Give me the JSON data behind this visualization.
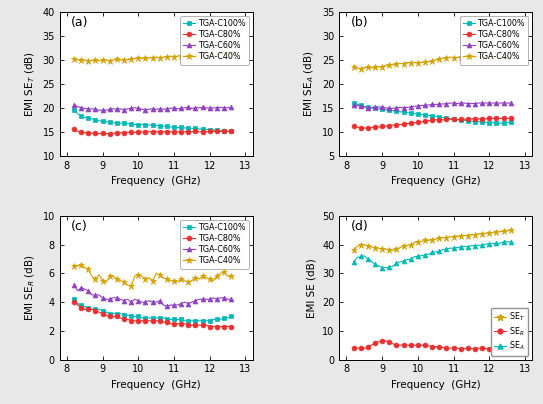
{
  "freq": [
    8.2,
    8.3,
    8.4,
    8.5,
    8.6,
    8.7,
    8.8,
    8.9,
    9.0,
    9.1,
    9.2,
    9.3,
    9.4,
    9.5,
    9.6,
    9.7,
    9.8,
    9.9,
    10.0,
    10.1,
    10.2,
    10.3,
    10.4,
    10.5,
    10.6,
    10.7,
    10.8,
    10.9,
    11.0,
    11.1,
    11.2,
    11.3,
    11.4,
    11.5,
    11.6,
    11.7,
    11.8,
    11.9,
    12.0,
    12.1,
    12.2,
    12.3,
    12.4,
    12.5,
    12.6
  ],
  "a_C40": [
    30.2,
    30.0,
    29.9,
    30.0,
    29.8,
    29.9,
    30.0,
    29.8,
    29.9,
    30.0,
    29.8,
    30.0,
    30.1,
    30.0,
    30.0,
    30.1,
    30.2,
    30.3,
    30.4,
    30.3,
    30.5,
    30.4,
    30.5,
    30.6,
    30.5,
    30.6,
    30.7,
    30.8,
    30.7,
    30.8,
    30.9,
    31.0,
    30.9,
    31.0,
    31.1,
    31.0,
    31.2,
    31.1,
    31.0,
    31.1,
    31.2,
    31.3,
    31.4,
    31.3,
    31.2
  ],
  "a_C60": [
    20.5,
    20.3,
    20.0,
    19.9,
    19.7,
    19.8,
    19.7,
    19.5,
    19.5,
    19.5,
    19.7,
    19.8,
    19.7,
    19.8,
    19.6,
    19.8,
    19.9,
    20.0,
    19.9,
    19.7,
    19.6,
    19.7,
    19.8,
    19.7,
    19.8,
    19.7,
    19.8,
    19.9,
    20.0,
    19.8,
    19.9,
    20.0,
    20.1,
    19.9,
    20.0,
    20.0,
    20.1,
    20.0,
    19.9,
    20.0,
    20.0,
    20.1,
    20.0,
    20.0,
    20.1
  ],
  "a_C100": [
    19.5,
    18.8,
    18.3,
    18.0,
    17.8,
    17.7,
    17.5,
    17.3,
    17.2,
    17.1,
    17.0,
    16.9,
    16.8,
    16.8,
    16.8,
    16.7,
    16.6,
    16.5,
    16.5,
    16.5,
    16.5,
    16.4,
    16.4,
    16.3,
    16.3,
    16.2,
    16.1,
    16.0,
    16.0,
    15.9,
    15.9,
    15.8,
    15.8,
    15.7,
    15.7,
    15.6,
    15.5,
    15.5,
    15.4,
    15.4,
    15.3,
    15.2,
    15.2,
    15.1,
    15.1
  ],
  "a_C80": [
    15.5,
    15.1,
    14.9,
    14.8,
    14.8,
    14.7,
    14.7,
    14.6,
    14.7,
    14.6,
    14.6,
    14.7,
    14.7,
    14.8,
    14.8,
    14.9,
    14.9,
    14.9,
    14.9,
    15.0,
    15.0,
    15.0,
    15.0,
    15.0,
    15.0,
    15.0,
    15.0,
    15.0,
    15.0,
    15.0,
    15.0,
    15.0,
    15.0,
    15.0,
    15.1,
    15.0,
    15.0,
    15.0,
    15.1,
    15.1,
    15.1,
    15.1,
    15.1,
    15.1,
    15.2
  ],
  "b_C40": [
    23.5,
    23.3,
    23.2,
    23.4,
    23.5,
    23.3,
    23.5,
    23.6,
    23.5,
    23.8,
    23.9,
    24.0,
    24.2,
    24.3,
    24.2,
    24.5,
    24.4,
    24.5,
    24.4,
    24.5,
    24.6,
    24.6,
    24.8,
    25.0,
    25.2,
    25.4,
    25.5,
    25.6,
    25.5,
    25.5,
    25.6,
    25.5,
    25.4,
    25.5,
    25.6,
    25.5,
    25.5,
    25.5,
    25.5,
    25.5,
    25.5,
    25.5,
    25.5,
    25.5,
    25.5
  ],
  "b_C60": [
    15.5,
    15.5,
    15.3,
    15.2,
    15.0,
    15.0,
    15.1,
    15.2,
    15.1,
    15.0,
    14.9,
    14.9,
    15.0,
    15.1,
    15.0,
    15.1,
    15.2,
    15.3,
    15.4,
    15.5,
    15.5,
    15.6,
    15.7,
    15.7,
    15.8,
    15.8,
    15.9,
    16.0,
    16.0,
    15.9,
    16.0,
    16.0,
    15.9,
    15.9,
    15.9,
    16.0,
    16.0,
    16.0,
    16.0,
    16.0,
    16.0,
    16.0,
    16.0,
    16.0,
    16.0
  ],
  "b_C100": [
    16.0,
    15.8,
    15.5,
    15.3,
    15.1,
    15.0,
    14.9,
    14.8,
    14.7,
    14.6,
    14.5,
    14.4,
    14.3,
    14.2,
    14.1,
    14.0,
    13.9,
    13.8,
    13.7,
    13.6,
    13.5,
    13.4,
    13.3,
    13.2,
    13.1,
    13.0,
    12.9,
    12.8,
    12.7,
    12.6,
    12.5,
    12.4,
    12.3,
    12.2,
    12.1,
    12.1,
    12.0,
    12.0,
    11.9,
    11.9,
    11.8,
    11.8,
    11.8,
    11.9,
    12.0
  ],
  "b_C80": [
    11.3,
    11.0,
    10.8,
    10.8,
    10.8,
    10.9,
    11.0,
    11.0,
    11.1,
    11.2,
    11.3,
    11.4,
    11.4,
    11.5,
    11.6,
    11.7,
    11.8,
    11.9,
    12.0,
    12.1,
    12.2,
    12.3,
    12.4,
    12.5,
    12.5,
    12.5,
    12.6,
    12.6,
    12.6,
    12.5,
    12.6,
    12.6,
    12.7,
    12.7,
    12.7,
    12.7,
    12.7,
    12.7,
    12.8,
    12.8,
    12.8,
    12.8,
    12.8,
    12.8,
    12.8
  ],
  "c_C40": [
    6.5,
    6.5,
    6.6,
    6.4,
    6.3,
    5.8,
    5.6,
    5.9,
    5.5,
    5.4,
    5.8,
    5.8,
    5.6,
    5.5,
    5.4,
    5.2,
    5.1,
    5.8,
    5.9,
    5.8,
    5.6,
    5.7,
    5.5,
    6.0,
    5.9,
    5.7,
    5.6,
    5.5,
    5.5,
    5.4,
    5.6,
    5.5,
    5.4,
    5.5,
    5.7,
    5.6,
    5.8,
    5.7,
    5.6,
    5.5,
    5.8,
    6.0,
    6.1,
    5.8,
    5.8
  ],
  "c_C60": [
    5.2,
    4.8,
    5.0,
    4.9,
    4.8,
    4.5,
    4.5,
    4.5,
    4.3,
    4.2,
    4.2,
    4.3,
    4.3,
    4.2,
    4.1,
    4.2,
    4.0,
    4.2,
    4.1,
    4.0,
    4.0,
    4.1,
    4.0,
    4.0,
    4.1,
    3.8,
    3.7,
    3.8,
    3.8,
    3.8,
    3.9,
    4.0,
    3.9,
    4.0,
    4.1,
    4.2,
    4.2,
    4.2,
    4.2,
    4.3,
    4.2,
    4.3,
    4.3,
    4.2,
    4.2
  ],
  "c_C100": [
    4.2,
    3.9,
    3.8,
    3.7,
    3.6,
    3.5,
    3.5,
    3.5,
    3.4,
    3.3,
    3.2,
    3.2,
    3.2,
    3.2,
    3.1,
    3.1,
    3.0,
    3.0,
    3.0,
    2.9,
    2.9,
    2.9,
    2.9,
    2.9,
    2.9,
    2.9,
    2.8,
    2.8,
    2.8,
    2.8,
    2.8,
    2.7,
    2.7,
    2.7,
    2.7,
    2.7,
    2.7,
    2.7,
    2.7,
    2.8,
    2.8,
    2.8,
    2.9,
    2.9,
    3.0
  ],
  "c_C80": [
    4.0,
    3.8,
    3.6,
    3.5,
    3.5,
    3.5,
    3.4,
    3.3,
    3.2,
    3.1,
    3.0,
    3.0,
    3.0,
    2.9,
    2.8,
    2.8,
    2.7,
    2.7,
    2.7,
    2.7,
    2.7,
    2.7,
    2.7,
    2.7,
    2.7,
    2.6,
    2.6,
    2.5,
    2.5,
    2.5,
    2.5,
    2.5,
    2.4,
    2.4,
    2.4,
    2.4,
    2.4,
    2.4,
    2.3,
    2.3,
    2.3,
    2.3,
    2.3,
    2.3,
    2.3
  ],
  "d_SE_T": [
    38.0,
    39.5,
    39.8,
    40.0,
    39.5,
    39.2,
    39.0,
    38.8,
    38.5,
    38.5,
    38.2,
    38.0,
    38.5,
    39.0,
    39.5,
    39.8,
    40.0,
    40.8,
    41.0,
    41.2,
    41.5,
    41.5,
    41.8,
    42.0,
    42.2,
    42.5,
    42.5,
    42.8,
    42.8,
    43.0,
    43.0,
    43.2,
    43.2,
    43.5,
    43.5,
    43.8,
    43.8,
    44.0,
    44.0,
    44.2,
    44.5,
    44.5,
    44.8,
    44.8,
    45.0
  ],
  "d_SE_R": [
    4.0,
    4.0,
    3.9,
    3.9,
    4.5,
    5.0,
    5.8,
    6.2,
    6.5,
    6.5,
    6.0,
    5.5,
    5.0,
    5.0,
    5.2,
    5.0,
    5.0,
    5.0,
    5.0,
    5.0,
    5.0,
    4.8,
    4.5,
    4.5,
    4.5,
    4.2,
    4.0,
    4.0,
    4.0,
    4.0,
    3.8,
    3.8,
    4.0,
    3.8,
    3.8,
    4.0,
    4.0,
    3.8,
    3.8,
    3.8,
    4.0,
    4.0,
    3.8,
    3.8,
    4.0
  ],
  "d_SE_A": [
    34.0,
    35.5,
    35.9,
    36.1,
    35.0,
    34.2,
    33.2,
    32.6,
    32.0,
    32.0,
    32.2,
    32.5,
    33.5,
    34.0,
    34.3,
    34.8,
    35.0,
    35.8,
    36.0,
    36.2,
    36.5,
    36.7,
    37.3,
    37.5,
    37.7,
    38.3,
    38.5,
    38.8,
    38.8,
    39.0,
    39.2,
    39.4,
    39.2,
    39.7,
    39.7,
    39.8,
    39.8,
    40.2,
    40.2,
    40.4,
    40.5,
    40.5,
    41.0,
    41.0,
    41.0
  ],
  "color_C100": "#00B8B8",
  "color_C80": "#E83030",
  "color_C60": "#9040C0",
  "color_C40": "#D4A000",
  "color_SE_T": "#D4A000",
  "color_SE_R": "#E83030",
  "color_SE_A": "#00B8B8",
  "marker_C100": "s",
  "marker_C80": "o",
  "marker_C60": "^",
  "marker_C40": "*",
  "marker_SE_T": "*",
  "marker_SE_R": "o",
  "marker_SE_A": "^",
  "panel_a_ylabel": "EMI SE$_T$ (dB)",
  "panel_b_ylabel": "EMI SE$_A$ (dB)",
  "panel_c_ylabel": "EMI SE$_R$ (dB)",
  "panel_d_ylabel": "EMI SE (dB)",
  "xlabel": "Frequency  (GHz)",
  "panel_a_ylim": [
    10,
    40
  ],
  "panel_b_ylim": [
    5,
    35
  ],
  "panel_c_ylim": [
    0,
    10
  ],
  "panel_d_ylim": [
    0,
    50
  ],
  "panel_a_yticks": [
    10,
    15,
    20,
    25,
    30,
    35,
    40
  ],
  "panel_b_yticks": [
    5,
    10,
    15,
    20,
    25,
    30,
    35
  ],
  "panel_c_yticks": [
    0,
    2,
    4,
    6,
    8,
    10
  ],
  "panel_d_yticks": [
    0,
    10,
    20,
    30,
    40,
    50
  ],
  "labels_4": [
    "TGA-C100%",
    "TGA-C80%",
    "TGA-C60%",
    "TGA-C40%"
  ],
  "labels_3": [
    "SE$_T$",
    "SE$_R$",
    "SE$_A$"
  ],
  "fig_facecolor": "#E8E8E8",
  "ax_facecolor": "#FFFFFF"
}
